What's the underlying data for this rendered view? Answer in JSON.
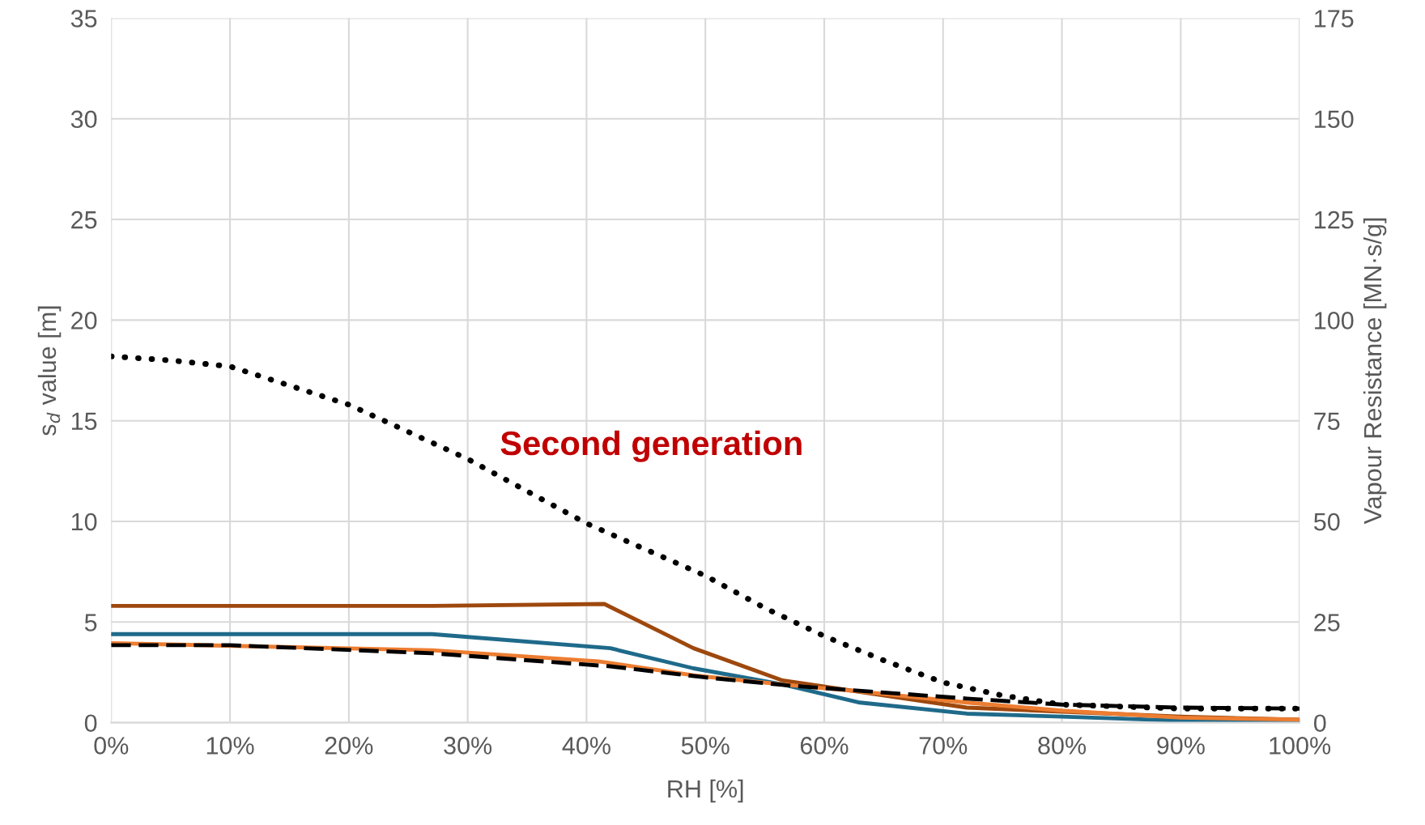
{
  "chart_data": {
    "type": "line",
    "xlabel": "RH [%]",
    "ylabel": "s$_{d}$ value [m]",
    "y2label": "Vapour Resistance [MN·s/g]",
    "annotations": [
      "Second generation"
    ],
    "xlim": [
      0,
      100
    ],
    "xticks": [
      {
        "value": 0,
        "label": "0%"
      },
      {
        "value": 10,
        "label": "10%"
      },
      {
        "value": 20,
        "label": "20%"
      },
      {
        "value": 30,
        "label": "30%"
      },
      {
        "value": 40,
        "label": "40%"
      },
      {
        "value": 50,
        "label": "50%"
      },
      {
        "value": 60,
        "label": "60%"
      },
      {
        "value": 70,
        "label": "70%"
      },
      {
        "value": 80,
        "label": "80%"
      },
      {
        "value": 90,
        "label": "90%"
      },
      {
        "value": 100,
        "label": "100%"
      }
    ],
    "ylim": [
      0,
      35
    ],
    "yticks": [
      0,
      5,
      10,
      15,
      20,
      25,
      30,
      35
    ],
    "y2lim": [
      0,
      175
    ],
    "y2ticks": [
      0,
      25,
      50,
      75,
      100,
      125,
      150,
      175
    ],
    "grid": true,
    "marker": "none",
    "series": [
      {
        "color": "#000000",
        "line_style": "dotted",
        "x": [
          0,
          5,
          10,
          20,
          30,
          40,
          45,
          50,
          55,
          60,
          65,
          70,
          75,
          80,
          90,
          100
        ],
        "values": [
          18.2,
          18.0,
          17.7,
          15.8,
          13.1,
          9.9,
          8.6,
          7.3,
          5.7,
          4.3,
          3.1,
          2.0,
          1.35,
          0.9,
          0.7,
          0.7
        ]
      },
      {
        "color": "#9e480e",
        "line_style": "solid",
        "x": [
          0,
          27,
          41.5,
          49,
          56.5,
          72,
          90,
          100
        ],
        "values": [
          5.8,
          5.8,
          5.9,
          3.7,
          2.1,
          0.75,
          0.3,
          0.15
        ]
      },
      {
        "color": "#1f6a8a",
        "line_style": "solid",
        "x": [
          0,
          27,
          42,
          49,
          56.5,
          63,
          72,
          80,
          90,
          100
        ],
        "values": [
          4.4,
          4.4,
          3.7,
          2.7,
          1.9,
          1.0,
          0.45,
          0.3,
          0.1,
          0.1
        ]
      },
      {
        "color": "#ed7d31",
        "line_style": "solid",
        "x": [
          0,
          27,
          41,
          49,
          56.5,
          63,
          72,
          80,
          90,
          100
        ],
        "values": [
          3.95,
          3.6,
          3.05,
          2.35,
          1.9,
          1.55,
          1.0,
          0.6,
          0.25,
          0.15
        ]
      },
      {
        "color": "#000000",
        "line_style": "dashed",
        "x": [
          0,
          10,
          27,
          42,
          50,
          57,
          65,
          72,
          80,
          90,
          100
        ],
        "values": [
          3.85,
          3.85,
          3.45,
          2.8,
          2.25,
          1.85,
          1.5,
          1.2,
          0.9,
          0.75,
          0.7
        ]
      }
    ]
  }
}
